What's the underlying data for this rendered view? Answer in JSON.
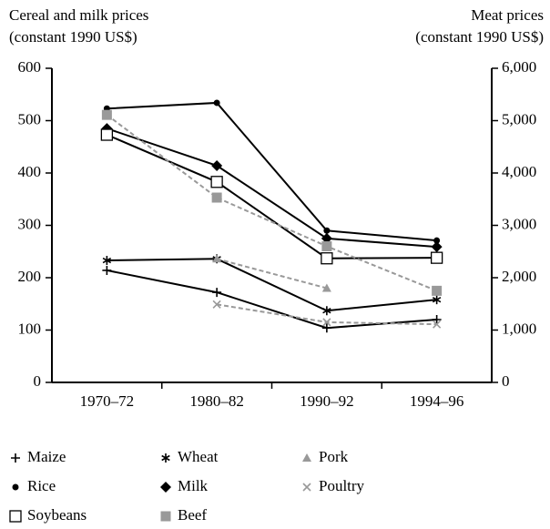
{
  "chart_data": {
    "type": "line",
    "ylabel": [
      "Cereal and milk prices",
      "(constant 1990 US$)"
    ],
    "y2label": [
      "Meat prices",
      "(constant 1990 US$)"
    ],
    "categories": [
      "1970–72",
      "1980–82",
      "1990–92",
      "1994–96"
    ],
    "ylim": [
      0,
      600
    ],
    "yticks": [
      0,
      100,
      200,
      300,
      400,
      500,
      600
    ],
    "y2lim": [
      0,
      6000
    ],
    "y2ticks": [
      0,
      {
        "value": 1000,
        "label": "1,000"
      },
      {
        "value": 2000,
        "label": "2,000"
      },
      {
        "value": 3000,
        "label": "3,000"
      },
      {
        "value": 4000,
        "label": "4,000"
      },
      {
        "value": 5000,
        "label": "5,000"
      },
      {
        "value": 6000,
        "label": "6,000"
      }
    ],
    "series": [
      {
        "name": "Maize",
        "color": "#000000",
        "marker": "plus",
        "dashed": false,
        "values": [
          214,
          172,
          104,
          120
        ]
      },
      {
        "name": "Wheat",
        "color": "#000000",
        "marker": "star",
        "dashed": false,
        "values": [
          233,
          236,
          137,
          158
        ]
      },
      {
        "name": "Pork",
        "color": "#999999",
        "marker": "triangle",
        "dashed": true,
        "axis": "y2",
        "values": [
          null,
          2360,
          1800,
          null
        ]
      },
      {
        "name": "Rice",
        "color": "#000000",
        "marker": "circle",
        "dashed": false,
        "values": [
          523,
          534,
          290,
          271
        ]
      },
      {
        "name": "Milk",
        "color": "#000000",
        "marker": "diamond",
        "dashed": false,
        "values": [
          485,
          414,
          275,
          259
        ]
      },
      {
        "name": "Poultry",
        "color": "#999999",
        "marker": "x",
        "dashed": true,
        "axis": "y2",
        "values": [
          null,
          1490,
          1150,
          1110
        ]
      },
      {
        "name": "Soybeans",
        "color": "#000000",
        "marker": "square-open",
        "dashed": false,
        "values": [
          473,
          383,
          237,
          238
        ]
      },
      {
        "name": "Beef",
        "color": "#999999",
        "marker": "square",
        "dashed": true,
        "axis": "y2",
        "values": [
          5110,
          3530,
          2600,
          1750
        ]
      }
    ]
  }
}
